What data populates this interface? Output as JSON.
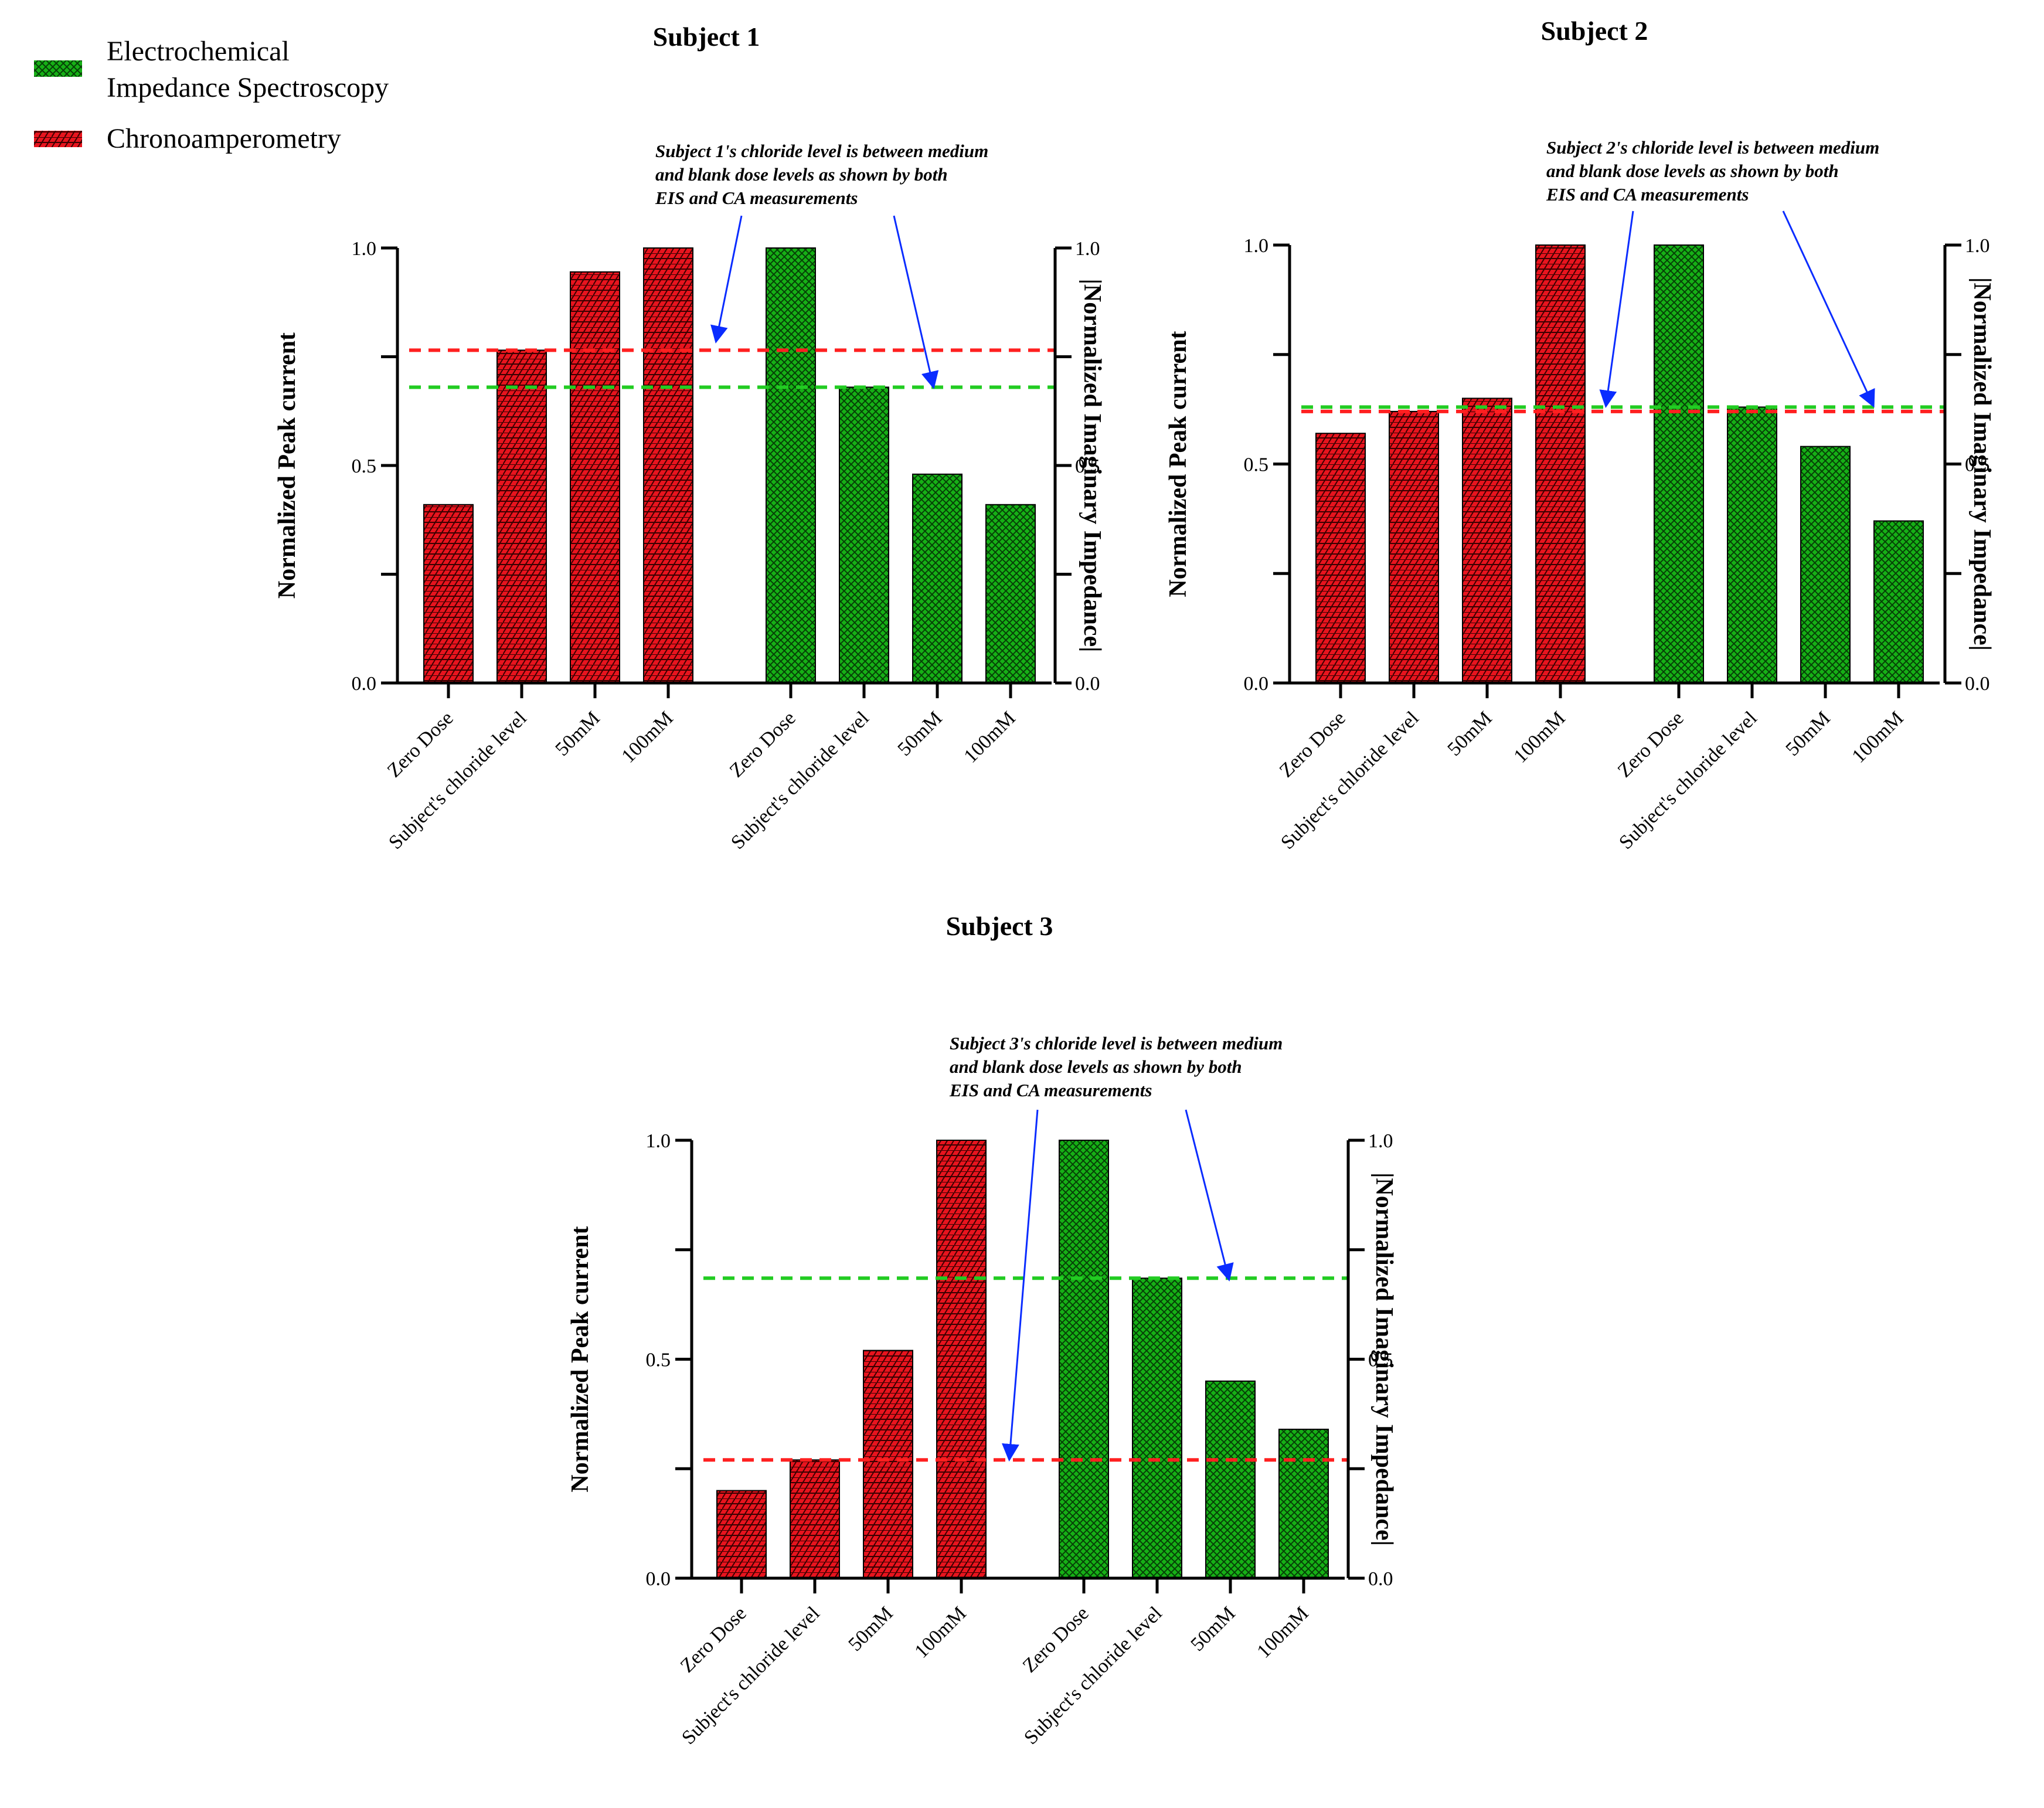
{
  "colors": {
    "ca_fill": "#e8141e",
    "eis_fill": "#16b016",
    "ca_ref": "#ff2020",
    "eis_ref": "#22cc22",
    "arrow": "#0a2cff",
    "axis": "#000000"
  },
  "legend": {
    "items": [
      {
        "label": "Electrochemical\nImpedance Spectroscopy",
        "series": "eis"
      },
      {
        "label": "Chronoamperometry",
        "series": "ca"
      }
    ]
  },
  "chart_data": [
    {
      "type": "bar",
      "title": "Subject 1",
      "categories": [
        "Zero Dose",
        "Subject's chloride level",
        "50mM",
        "100mM"
      ],
      "series": [
        {
          "name": "Chronoamperometry",
          "key": "ca",
          "axis": "left",
          "values": [
            0.41,
            0.765,
            0.945,
            1.0
          ]
        },
        {
          "name": "Electrochemical Impedance Spectroscopy",
          "key": "eis",
          "axis": "right",
          "values": [
            1.0,
            0.68,
            0.48,
            0.41
          ]
        }
      ],
      "ylabel_left": "Normalized Peak current",
      "ylabel_right": "|Normalized Imaginary Impedance|",
      "ylim": [
        0,
        1
      ],
      "yticks_left": [
        "0.0",
        "0.5",
        "1.0"
      ],
      "yticks_right": [
        "0.0",
        "0.5",
        "1.0"
      ],
      "ref_lines": [
        {
          "series": "ca",
          "value": 0.765
        },
        {
          "series": "eis",
          "value": 0.68
        }
      ],
      "annotation": [
        "Subject 1's chloride level is between medium",
        "and blank dose levels as shown by both",
        " EIS and CA measurements"
      ]
    },
    {
      "type": "bar",
      "title": "Subject 2",
      "categories": [
        "Zero Dose",
        "Subject's chloride level",
        "50mM",
        "100mM"
      ],
      "series": [
        {
          "name": "Chronoamperometry",
          "key": "ca",
          "axis": "left",
          "values": [
            0.57,
            0.62,
            0.65,
            1.0
          ]
        },
        {
          "name": "Electrochemical Impedance Spectroscopy",
          "key": "eis",
          "axis": "right",
          "values": [
            1.0,
            0.63,
            0.54,
            0.37
          ]
        }
      ],
      "ylabel_left": "Normalized Peak current",
      "ylabel_right": "|Normalized Imaginary Impedance|",
      "ylim": [
        0,
        1
      ],
      "yticks_left": [
        "0.0",
        "0.5",
        "1.0"
      ],
      "yticks_right": [
        "0.0",
        "0.5",
        "1.0"
      ],
      "ref_lines": [
        {
          "series": "ca",
          "value": 0.62
        },
        {
          "series": "eis",
          "value": 0.63
        }
      ],
      "annotation": [
        "Subject 2's chloride level is between medium",
        "and blank dose levels as shown by both",
        " EIS and CA measurements"
      ]
    },
    {
      "type": "bar",
      "title": "Subject 3",
      "categories": [
        "Zero Dose",
        "Subject's chloride level",
        "50mM",
        "100mM"
      ],
      "series": [
        {
          "name": "Chronoamperometry",
          "key": "ca",
          "axis": "left",
          "values": [
            0.2,
            0.27,
            0.52,
            1.0
          ]
        },
        {
          "name": "Electrochemical Impedance Spectroscopy",
          "key": "eis",
          "axis": "right",
          "values": [
            1.0,
            0.685,
            0.45,
            0.34
          ]
        }
      ],
      "ylabel_left": "Normalized Peak current",
      "ylabel_right": "|Normalized Imaginary Impedance|",
      "ylim": [
        0,
        1
      ],
      "yticks_left": [
        "0.0",
        "0.5",
        "1.0"
      ],
      "yticks_right": [
        "0.0",
        "0.5",
        "1.0"
      ],
      "ref_lines": [
        {
          "series": "ca",
          "value": 0.27
        },
        {
          "series": "eis",
          "value": 0.685
        }
      ],
      "annotation": [
        "Subject 3's chloride level is between medium",
        "and blank dose levels as shown by both",
        " EIS and CA measurements"
      ]
    }
  ]
}
